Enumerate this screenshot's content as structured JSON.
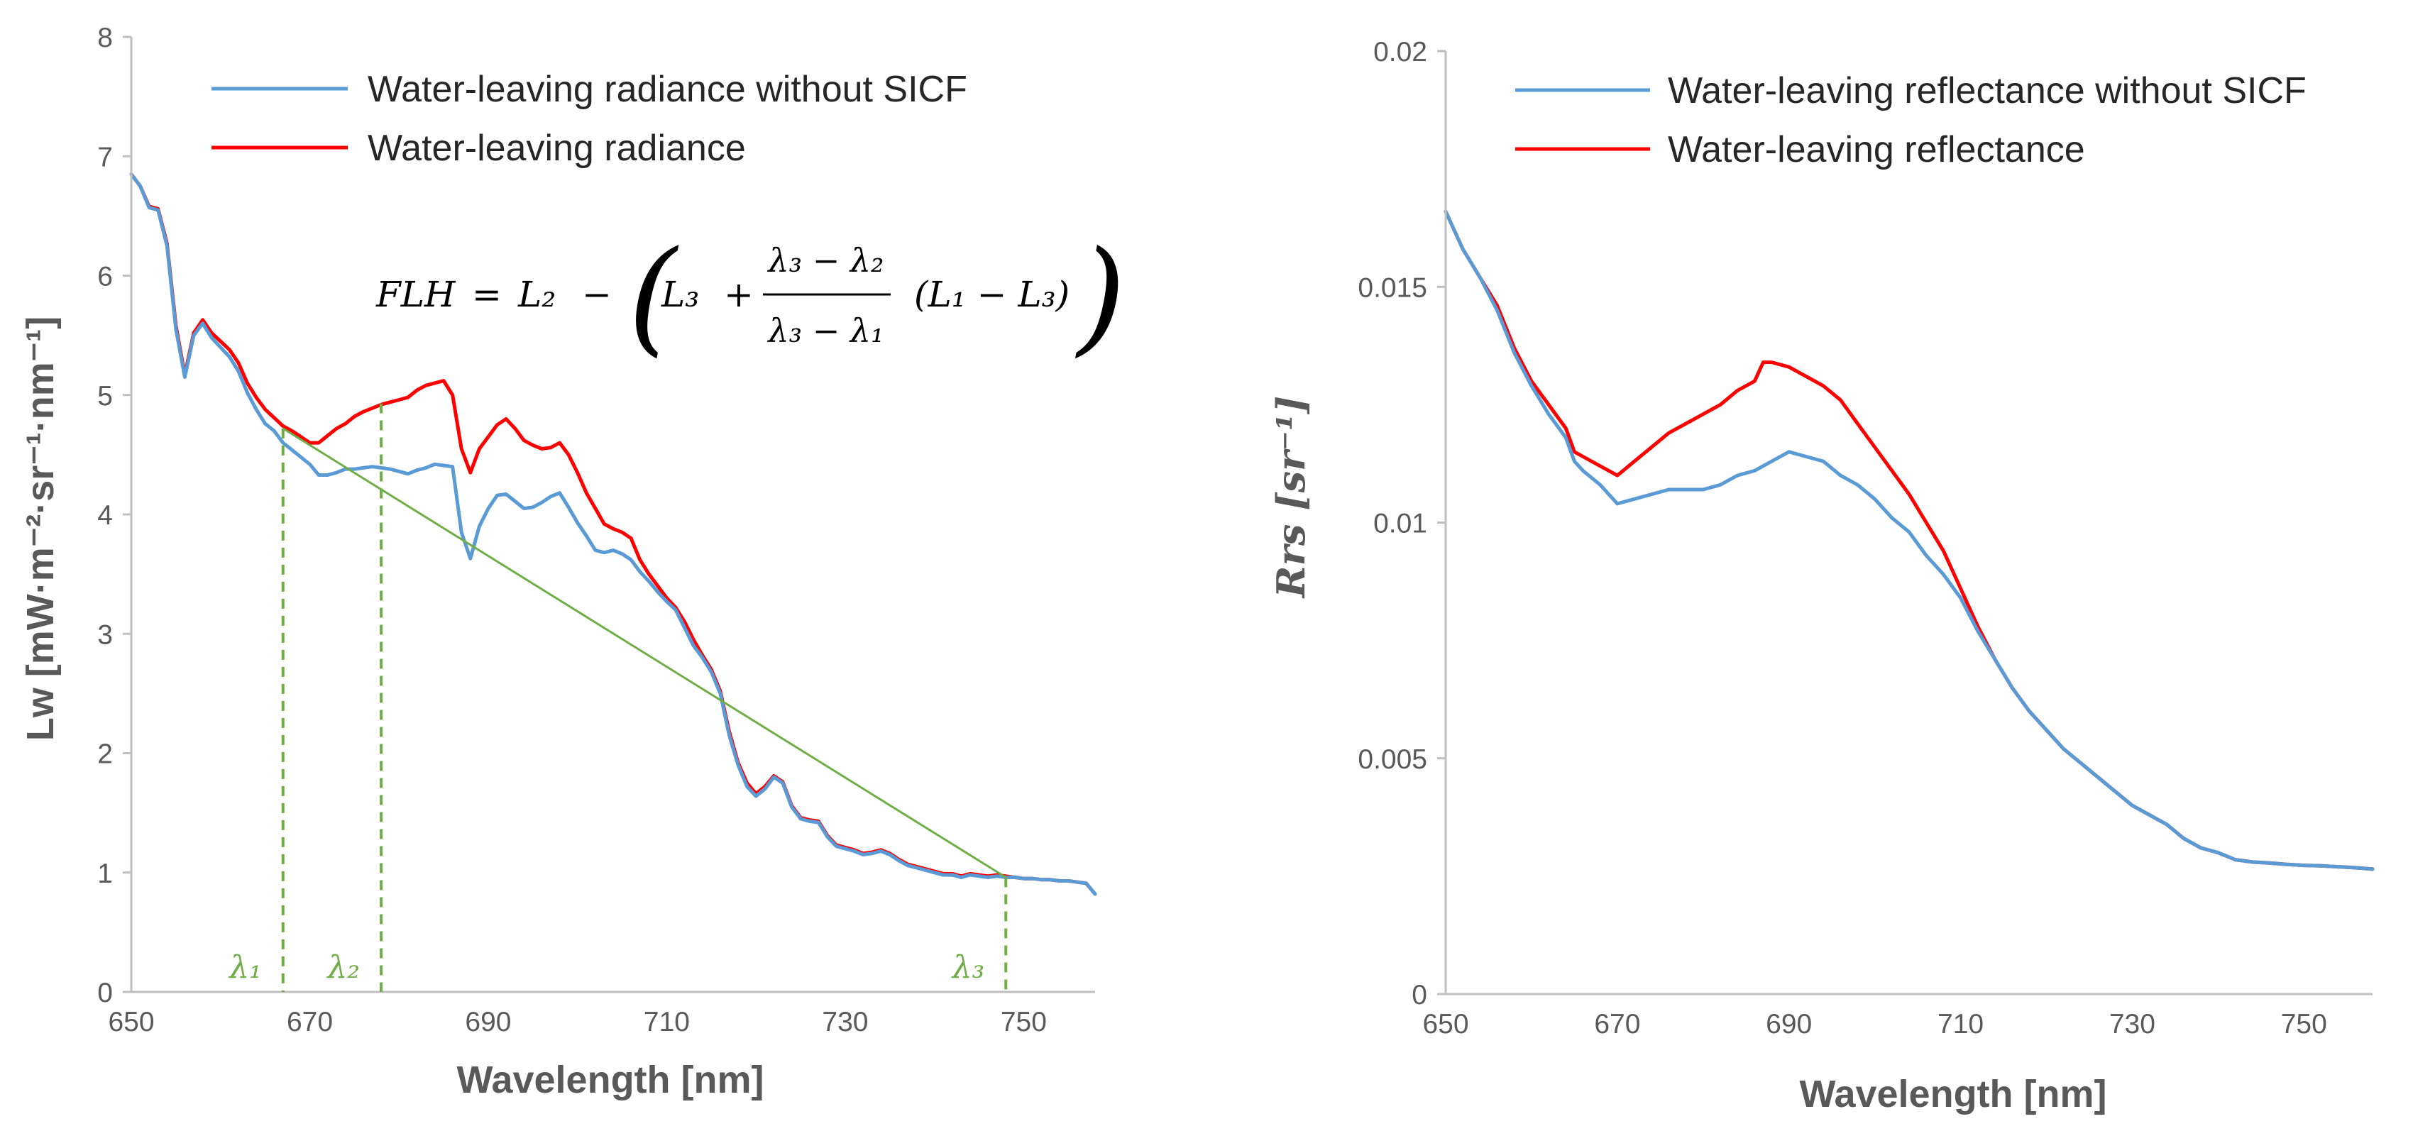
{
  "chart_data": [
    {
      "type": "line",
      "xlabel": "Wavelength [nm]",
      "ylabel": "Lw [mW·m⁻²·sr⁻¹·nm⁻¹]",
      "xlim": [
        650,
        758
      ],
      "ylim": [
        0,
        8
      ],
      "xticks": [
        "650",
        "670",
        "690",
        "710",
        "730",
        "750"
      ],
      "yticks": [
        "0",
        "1",
        "2",
        "3",
        "4",
        "5",
        "6",
        "7",
        "8"
      ],
      "grid": false,
      "legend_position": "top",
      "legend": [
        "Water-leaving radiance without SICF",
        "Water-leaving radiance"
      ],
      "formula": {
        "lhs": "FLH",
        "equals": "=",
        "L2": "L₂",
        "minus": "−",
        "open_paren": "(",
        "L3": "L₃",
        "plus": "+",
        "numerator": "λ₃ − λ₂",
        "denominator": "λ₃ − λ₁",
        "diff": "(L₁ − L₃)",
        "close_paren": ")"
      },
      "markers": [
        {
          "label": "λ₁",
          "x": 667,
          "y": 4.72
        },
        {
          "label": "λ₂",
          "x": 678,
          "y": 4.93
        },
        {
          "label": "λ₃",
          "x": 748,
          "y": 0.96
        }
      ],
      "baseline": {
        "x": [
          667,
          748
        ],
        "y": [
          4.72,
          0.96
        ]
      },
      "series": [
        {
          "name": "Water-leaving radiance without SICF",
          "color": "#5b9bd5",
          "x": [
            650,
            651,
            652,
            653,
            654,
            655,
            656,
            657,
            658,
            659,
            660,
            661,
            662,
            663,
            664,
            665,
            666,
            667,
            668,
            669,
            670,
            671,
            672,
            673,
            674,
            675,
            676,
            677,
            678,
            679,
            680,
            681,
            682,
            683,
            684,
            685,
            686,
            687,
            688,
            689,
            690,
            691,
            692,
            693,
            694,
            695,
            696,
            697,
            698,
            699,
            700,
            701,
            702,
            703,
            704,
            705,
            706,
            707,
            708,
            709,
            710,
            711,
            712,
            713,
            714,
            715,
            716,
            717,
            718,
            719,
            720,
            721,
            722,
            723,
            724,
            725,
            726,
            727,
            728,
            729,
            730,
            731,
            732,
            733,
            734,
            735,
            736,
            737,
            738,
            739,
            740,
            741,
            742,
            743,
            744,
            745,
            746,
            747,
            748,
            749,
            750,
            751,
            752,
            753,
            754,
            755,
            756,
            757,
            758
          ],
          "y": [
            6.85,
            6.75,
            6.57,
            6.55,
            6.25,
            5.55,
            5.15,
            5.5,
            5.6,
            5.48,
            5.4,
            5.32,
            5.2,
            5.02,
            4.88,
            4.76,
            4.7,
            4.6,
            4.54,
            4.48,
            4.42,
            4.33,
            4.33,
            4.35,
            4.38,
            4.38,
            4.39,
            4.4,
            4.39,
            4.38,
            4.36,
            4.34,
            4.37,
            4.39,
            4.42,
            4.41,
            4.4,
            3.85,
            3.63,
            3.9,
            4.05,
            4.16,
            4.17,
            4.11,
            4.05,
            4.06,
            4.1,
            4.15,
            4.18,
            4.06,
            3.93,
            3.82,
            3.7,
            3.68,
            3.7,
            3.67,
            3.62,
            3.52,
            3.44,
            3.35,
            3.27,
            3.2,
            3.05,
            2.9,
            2.8,
            2.68,
            2.5,
            2.15,
            1.9,
            1.72,
            1.64,
            1.7,
            1.8,
            1.75,
            1.55,
            1.45,
            1.43,
            1.42,
            1.3,
            1.22,
            1.2,
            1.18,
            1.15,
            1.16,
            1.18,
            1.15,
            1.1,
            1.06,
            1.04,
            1.02,
            1,
            0.98,
            0.98,
            0.96,
            0.98,
            0.97,
            0.96,
            0.97,
            0.96,
            0.96,
            0.95,
            0.95,
            0.94,
            0.94,
            0.93,
            0.93,
            0.92,
            0.91,
            0.82
          ]
        },
        {
          "name": "Water-leaving radiance",
          "color": "#ff0000",
          "x": [
            650,
            651,
            652,
            653,
            654,
            655,
            656,
            657,
            658,
            659,
            660,
            661,
            662,
            663,
            664,
            665,
            666,
            667,
            668,
            669,
            670,
            671,
            672,
            673,
            674,
            675,
            676,
            677,
            678,
            679,
            680,
            681,
            682,
            683,
            684,
            685,
            686,
            687,
            688,
            689,
            690,
            691,
            692,
            693,
            694,
            695,
            696,
            697,
            698,
            699,
            700,
            701,
            702,
            703,
            704,
            705,
            706,
            707,
            708,
            709,
            710,
            711,
            712,
            713,
            714,
            715,
            716,
            717,
            718,
            719,
            720,
            721,
            722,
            723,
            724,
            725,
            726,
            727,
            728,
            729,
            730,
            731,
            732,
            733,
            734,
            735,
            736,
            737,
            738,
            739,
            740,
            741,
            742,
            743,
            744,
            745,
            746,
            747,
            748,
            749,
            750,
            751,
            752,
            753,
            754,
            755,
            756,
            757,
            758
          ],
          "y": [
            6.85,
            6.75,
            6.58,
            6.56,
            6.27,
            5.58,
            5.17,
            5.52,
            5.63,
            5.52,
            5.45,
            5.38,
            5.27,
            5.1,
            4.98,
            4.88,
            4.81,
            4.74,
            4.7,
            4.65,
            4.6,
            4.6,
            4.66,
            4.72,
            4.76,
            4.82,
            4.86,
            4.89,
            4.92,
            4.94,
            4.96,
            4.98,
            5.04,
            5.08,
            5.1,
            5.12,
            5.0,
            4.55,
            4.35,
            4.55,
            4.65,
            4.75,
            4.8,
            4.72,
            4.62,
            4.58,
            4.55,
            4.56,
            4.6,
            4.5,
            4.35,
            4.18,
            4.05,
            3.92,
            3.88,
            3.85,
            3.8,
            3.62,
            3.5,
            3.4,
            3.3,
            3.22,
            3.1,
            2.95,
            2.82,
            2.7,
            2.52,
            2.18,
            1.92,
            1.75,
            1.66,
            1.72,
            1.81,
            1.76,
            1.56,
            1.46,
            1.44,
            1.43,
            1.31,
            1.23,
            1.21,
            1.19,
            1.16,
            1.17,
            1.19,
            1.16,
            1.11,
            1.07,
            1.05,
            1.03,
            1.01,
            0.99,
            0.99,
            0.97,
            0.99,
            0.98,
            0.97,
            0.98,
            0.97,
            0.96,
            0.95,
            0.95,
            0.94,
            0.94,
            0.93,
            0.93,
            0.92,
            0.91,
            0.82
          ]
        }
      ]
    },
    {
      "type": "line",
      "xlabel": "Wavelength [nm]",
      "ylabel": "Rrs [sr⁻¹]",
      "xlim": [
        650,
        758
      ],
      "ylim": [
        0,
        0.02
      ],
      "xticks": [
        "650",
        "670",
        "690",
        "710",
        "730",
        "750"
      ],
      "yticks": [
        "0",
        "0.005",
        "0.01",
        "0.015",
        "0.02"
      ],
      "grid": false,
      "legend_position": "top",
      "legend": [
        "Water-leaving reflectance without SICF",
        "Water-leaving reflectance"
      ],
      "series": [
        {
          "name": "Water-leaving reflectance without SICF",
          "color": "#5b9bd5",
          "x": [
            650,
            652,
            654,
            656,
            658,
            660,
            662,
            664,
            665,
            666,
            668,
            670,
            672,
            674,
            676,
            678,
            680,
            682,
            684,
            686,
            688,
            690,
            692,
            694,
            696,
            698,
            700,
            702,
            704,
            706,
            708,
            710,
            712,
            714,
            716,
            718,
            720,
            722,
            724,
            726,
            728,
            730,
            732,
            734,
            736,
            738,
            740,
            742,
            744,
            746,
            748,
            750,
            752,
            754,
            756,
            758
          ],
          "y": [
            0.0166,
            0.0158,
            0.0152,
            0.0145,
            0.0136,
            0.0129,
            0.0123,
            0.0118,
            0.0113,
            0.0111,
            0.0108,
            0.0104,
            0.0105,
            0.0106,
            0.0107,
            0.0107,
            0.0107,
            0.0108,
            0.011,
            0.0111,
            0.0113,
            0.0115,
            0.0114,
            0.0113,
            0.011,
            0.0108,
            0.0105,
            0.0101,
            0.0098,
            0.0093,
            0.0089,
            0.0084,
            0.0077,
            0.0071,
            0.0065,
            0.006,
            0.0056,
            0.0052,
            0.0049,
            0.0046,
            0.0043,
            0.004,
            0.0038,
            0.0036,
            0.0033,
            0.0031,
            0.003,
            0.00285,
            0.0028,
            0.00278,
            0.00275,
            0.00273,
            0.00272,
            0.0027,
            0.00268,
            0.00265
          ]
        },
        {
          "name": "Water-leaving reflectance",
          "color": "#ff0000",
          "x": [
            650,
            652,
            654,
            656,
            658,
            660,
            662,
            664,
            665,
            666,
            668,
            670,
            672,
            674,
            676,
            678,
            680,
            682,
            684,
            686,
            687,
            688,
            690,
            692,
            694,
            696,
            698,
            700,
            702,
            704,
            706,
            708,
            710,
            712,
            714,
            716,
            718,
            720,
            722,
            724,
            726,
            728,
            730,
            732,
            734,
            736,
            738,
            740,
            742,
            744,
            746,
            748,
            750,
            752,
            754,
            756,
            758
          ],
          "y": [
            0.0166,
            0.0158,
            0.0152,
            0.0146,
            0.0137,
            0.013,
            0.0125,
            0.012,
            0.0115,
            0.0114,
            0.0112,
            0.011,
            0.0113,
            0.0116,
            0.0119,
            0.0121,
            0.0123,
            0.0125,
            0.0128,
            0.013,
            0.0134,
            0.0134,
            0.0133,
            0.0131,
            0.0129,
            0.0126,
            0.0121,
            0.0116,
            0.0111,
            0.0106,
            0.01,
            0.0094,
            0.0086,
            0.0078,
            0.0071,
            0.0065,
            0.006,
            0.0056,
            0.0052,
            0.0049,
            0.0046,
            0.0043,
            0.004,
            0.0038,
            0.0036,
            0.0033,
            0.0031,
            0.003,
            0.00285,
            0.0028,
            0.00278,
            0.00275,
            0.00273,
            0.00272,
            0.0027,
            0.00268,
            0.00265
          ]
        }
      ]
    }
  ]
}
